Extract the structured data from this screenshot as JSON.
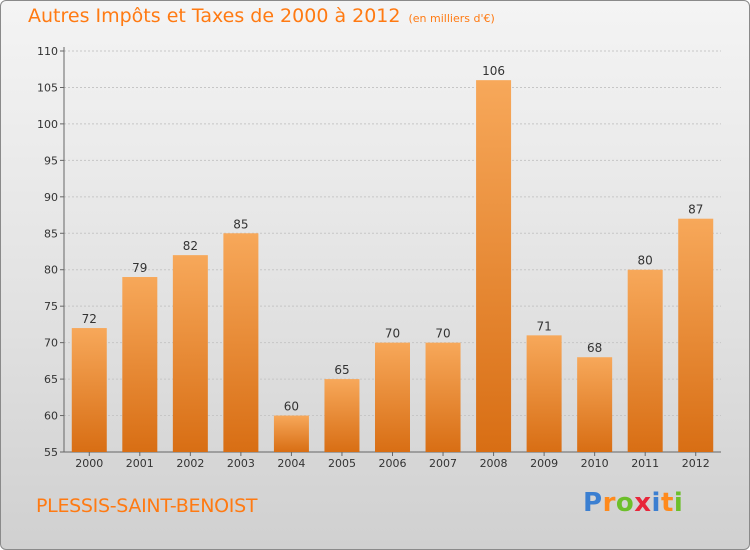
{
  "title": "Autres Impôts et Taxes de 2000 à 2012",
  "subtitle": "(en milliers d'€)",
  "location": "PLESSIS-SAINT-BENOIST",
  "logo": {
    "text": "Proxiti",
    "letter_colors": [
      "#3b7fd1",
      "#ff8a1c",
      "#6cbf2a",
      "#e8263a",
      "#3b7fd1",
      "#ff8a1c",
      "#6cbf2a"
    ]
  },
  "colors": {
    "bar_light": "#f7a85a",
    "bar_dark": "#d86e14",
    "text_accent": "#ff7a12",
    "axis_text": "#333333"
  },
  "chart_data": {
    "type": "bar",
    "categories": [
      "2000",
      "2001",
      "2002",
      "2003",
      "2004",
      "2005",
      "2006",
      "2007",
      "2008",
      "2009",
      "2010",
      "2011",
      "2012"
    ],
    "values": [
      72,
      79,
      82,
      85,
      60,
      65,
      70,
      70,
      106,
      71,
      68,
      80,
      87
    ],
    "data_labels": [
      "72",
      "79",
      "82",
      "85",
      "60",
      "65",
      "70",
      "70",
      "106",
      "71",
      "68",
      "80",
      "87"
    ],
    "ylim": [
      55,
      110
    ],
    "yticks": [
      55,
      60,
      65,
      70,
      75,
      80,
      85,
      90,
      95,
      100,
      105,
      110
    ],
    "ytick_labels": [
      "55",
      "60",
      "65",
      "70",
      "75",
      "80",
      "85",
      "90",
      "95",
      "100",
      "105",
      "110"
    ],
    "grid": true,
    "legend": "none",
    "title": "Autres Impôts et Taxes de 2000 à 2012",
    "xlabel": "",
    "ylabel": ""
  }
}
